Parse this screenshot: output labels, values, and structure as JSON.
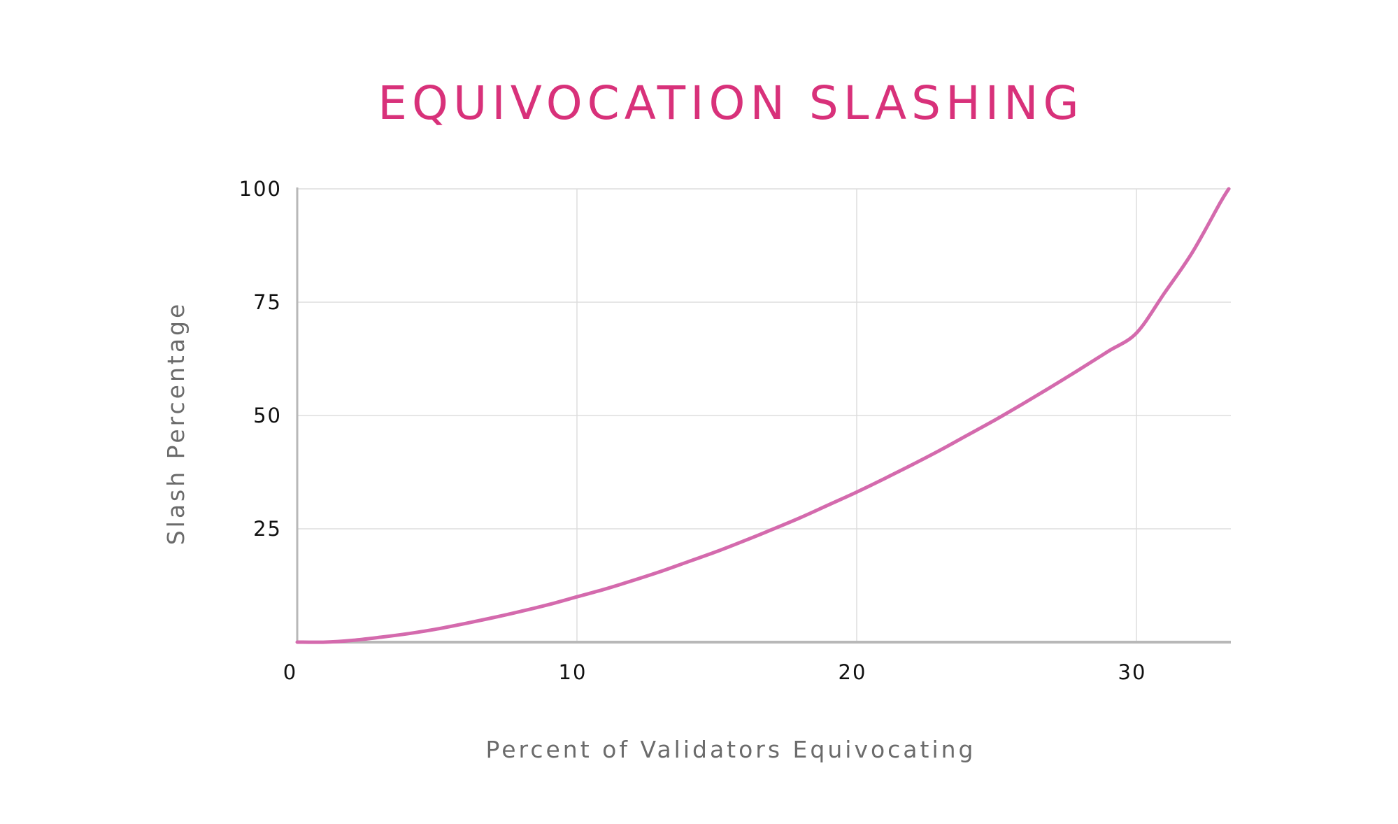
{
  "chart_data": {
    "type": "line",
    "title": "EQUIVOCATION SLASHING",
    "xlabel": "Percent of Validators Equivocating",
    "ylabel": "Slash Percentage",
    "xlim": [
      0,
      33.3
    ],
    "ylim": [
      0,
      100
    ],
    "x_ticks": [
      0,
      10,
      20,
      30
    ],
    "x_tick_labels": [
      "0",
      "10",
      "20",
      "30"
    ],
    "y_ticks": [
      25,
      50,
      75,
      100
    ],
    "y_tick_labels": [
      "25",
      "50",
      "75",
      "100"
    ],
    "grid": true,
    "legend": "none",
    "colors": {
      "title": "#d8317a",
      "line": "#d46aad",
      "grid": "#dddddd",
      "axis": "#b8b8b8"
    },
    "series": [
      {
        "x": [
          0,
          1,
          2,
          3,
          4,
          5,
          6,
          7,
          8,
          9,
          10,
          11,
          12,
          13,
          14,
          15,
          16,
          17,
          18,
          19,
          20,
          21,
          22,
          23,
          24,
          25,
          26,
          27,
          28,
          29,
          30,
          31,
          32,
          33,
          33.3
        ],
        "values": [
          0,
          0,
          0.4,
          1.1,
          1.9,
          2.9,
          4.1,
          5.4,
          6.8,
          8.3,
          10,
          11.7,
          13.6,
          15.6,
          17.8,
          20,
          22.4,
          24.9,
          27.5,
          30.3,
          33.1,
          36.1,
          39.2,
          42.4,
          45.8,
          49.2,
          52.8,
          56.5,
          60.3,
          64.2,
          68.2,
          77,
          86,
          97,
          100
        ]
      }
    ]
  }
}
